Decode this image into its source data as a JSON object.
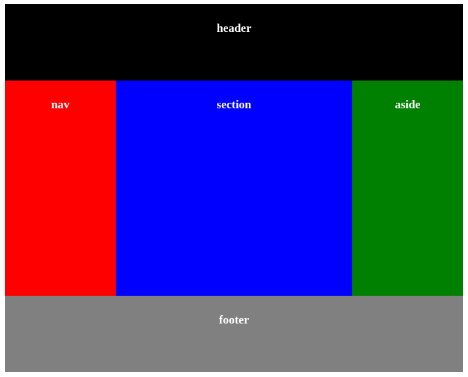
{
  "header": {
    "label": "header",
    "color": "#000000"
  },
  "nav": {
    "label": "nav",
    "color": "#ff0000"
  },
  "section": {
    "label": "section",
    "color": "#0000ff"
  },
  "aside": {
    "label": "aside",
    "color": "#008000"
  },
  "footer": {
    "label": "footer",
    "color": "#808080"
  }
}
